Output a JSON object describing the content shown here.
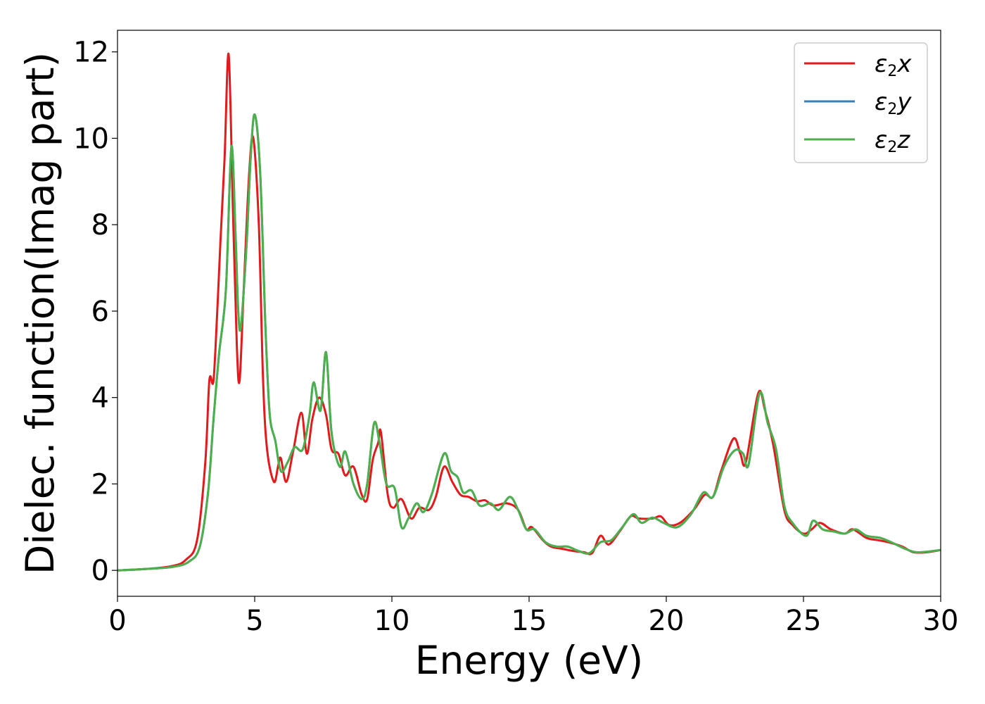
{
  "chart_data": {
    "type": "line",
    "title": "",
    "xlabel": "Energy (eV)",
    "ylabel": "Dielec. function(Imag part)",
    "xlim": [
      0,
      30
    ],
    "ylim": [
      -0.6,
      12.5
    ],
    "xticks": [
      0,
      5,
      10,
      15,
      20,
      25,
      30
    ],
    "yticks": [
      0,
      2,
      4,
      6,
      8,
      10,
      12
    ],
    "grid": false,
    "legend": "top-right",
    "series": [
      {
        "name": "ε₂x",
        "legend_base": "ε",
        "legend_sub": "2",
        "legend_suffix": "x",
        "color": "#e31a1c",
        "points": [
          [
            0,
            0
          ],
          [
            1,
            0.03
          ],
          [
            2,
            0.1
          ],
          [
            2.5,
            0.25
          ],
          [
            2.9,
            0.7
          ],
          [
            3.2,
            2.5
          ],
          [
            3.35,
            4.4
          ],
          [
            3.5,
            4.4
          ],
          [
            3.65,
            6.2
          ],
          [
            3.75,
            7.6
          ],
          [
            3.9,
            9.5
          ],
          [
            4.05,
            11.95
          ],
          [
            4.2,
            8.5
          ],
          [
            4.35,
            5.2
          ],
          [
            4.45,
            4.4
          ],
          [
            4.6,
            6.5
          ],
          [
            4.8,
            9.2
          ],
          [
            4.95,
            10.0
          ],
          [
            5.15,
            8.0
          ],
          [
            5.3,
            4.5
          ],
          [
            5.45,
            2.8
          ],
          [
            5.7,
            2.05
          ],
          [
            5.85,
            2.4
          ],
          [
            5.95,
            2.6
          ],
          [
            6.15,
            2.05
          ],
          [
            6.4,
            2.75
          ],
          [
            6.7,
            3.65
          ],
          [
            6.9,
            2.7
          ],
          [
            7.1,
            3.5
          ],
          [
            7.35,
            4.0
          ],
          [
            7.6,
            3.6
          ],
          [
            7.8,
            2.8
          ],
          [
            8.05,
            2.7
          ],
          [
            8.3,
            2.2
          ],
          [
            8.6,
            2.4
          ],
          [
            8.9,
            1.75
          ],
          [
            9.1,
            1.65
          ],
          [
            9.3,
            2.55
          ],
          [
            9.5,
            2.95
          ],
          [
            9.6,
            3.2
          ],
          [
            9.85,
            1.75
          ],
          [
            10.05,
            1.45
          ],
          [
            10.35,
            1.65
          ],
          [
            10.7,
            1.2
          ],
          [
            11.0,
            1.45
          ],
          [
            11.35,
            1.4
          ],
          [
            11.6,
            1.7
          ],
          [
            11.9,
            2.4
          ],
          [
            12.2,
            2.05
          ],
          [
            12.5,
            1.75
          ],
          [
            12.8,
            1.7
          ],
          [
            13.1,
            1.6
          ],
          [
            13.4,
            1.62
          ],
          [
            13.7,
            1.5
          ],
          [
            14.2,
            1.55
          ],
          [
            14.6,
            1.4
          ],
          [
            14.9,
            0.95
          ],
          [
            15.1,
            1.0
          ],
          [
            15.5,
            0.7
          ],
          [
            15.8,
            0.55
          ],
          [
            16.2,
            0.5
          ],
          [
            16.6,
            0.45
          ],
          [
            17.0,
            0.42
          ],
          [
            17.3,
            0.4
          ],
          [
            17.6,
            0.8
          ],
          [
            17.9,
            0.6
          ],
          [
            18.3,
            0.9
          ],
          [
            18.7,
            1.25
          ],
          [
            19.0,
            1.2
          ],
          [
            19.5,
            1.2
          ],
          [
            19.8,
            1.25
          ],
          [
            20.1,
            1.05
          ],
          [
            20.5,
            1.1
          ],
          [
            21.0,
            1.4
          ],
          [
            21.4,
            1.75
          ],
          [
            21.7,
            1.7
          ],
          [
            22.0,
            2.3
          ],
          [
            22.45,
            3.05
          ],
          [
            22.7,
            2.7
          ],
          [
            22.9,
            2.5
          ],
          [
            23.35,
            4.1
          ],
          [
            23.6,
            3.7
          ],
          [
            23.9,
            2.9
          ],
          [
            24.3,
            1.4
          ],
          [
            24.6,
            1.05
          ],
          [
            25.0,
            0.85
          ],
          [
            25.3,
            0.95
          ],
          [
            25.6,
            1.1
          ],
          [
            26.0,
            0.95
          ],
          [
            26.5,
            0.85
          ],
          [
            26.8,
            0.95
          ],
          [
            27.3,
            0.75
          ],
          [
            27.7,
            0.7
          ],
          [
            28.1,
            0.65
          ],
          [
            28.6,
            0.55
          ],
          [
            29.0,
            0.42
          ],
          [
            29.5,
            0.42
          ],
          [
            30,
            0.47
          ]
        ]
      },
      {
        "name": "ε₂y",
        "legend_base": "ε",
        "legend_sub": "2",
        "legend_suffix": "y",
        "color": "#377eb8",
        "points": [
          [
            0,
            0
          ],
          [
            1,
            0.03
          ],
          [
            2,
            0.08
          ],
          [
            2.6,
            0.2
          ],
          [
            3.0,
            0.55
          ],
          [
            3.3,
            1.8
          ],
          [
            3.5,
            3.5
          ],
          [
            3.7,
            5.0
          ],
          [
            3.95,
            6.5
          ],
          [
            4.15,
            9.8
          ],
          [
            4.3,
            7.8
          ],
          [
            4.4,
            6.0
          ],
          [
            4.5,
            5.65
          ],
          [
            4.7,
            7.5
          ],
          [
            4.85,
            9.5
          ],
          [
            5.0,
            10.55
          ],
          [
            5.2,
            9.2
          ],
          [
            5.4,
            5.5
          ],
          [
            5.55,
            3.6
          ],
          [
            5.75,
            3.0
          ],
          [
            5.95,
            2.3
          ],
          [
            6.2,
            2.5
          ],
          [
            6.45,
            2.85
          ],
          [
            6.75,
            2.8
          ],
          [
            7.0,
            3.6
          ],
          [
            7.15,
            4.35
          ],
          [
            7.4,
            3.7
          ],
          [
            7.6,
            5.05
          ],
          [
            7.8,
            3.2
          ],
          [
            8.1,
            2.4
          ],
          [
            8.3,
            2.75
          ],
          [
            8.6,
            2.0
          ],
          [
            8.9,
            1.65
          ],
          [
            9.1,
            2.0
          ],
          [
            9.35,
            3.4
          ],
          [
            9.55,
            2.95
          ],
          [
            9.8,
            2.0
          ],
          [
            10.1,
            1.9
          ],
          [
            10.35,
            1.0
          ],
          [
            10.6,
            1.2
          ],
          [
            10.9,
            1.55
          ],
          [
            11.15,
            1.35
          ],
          [
            11.45,
            1.75
          ],
          [
            11.9,
            2.7
          ],
          [
            12.15,
            2.3
          ],
          [
            12.4,
            2.15
          ],
          [
            12.6,
            1.8
          ],
          [
            12.9,
            1.85
          ],
          [
            13.2,
            1.5
          ],
          [
            13.6,
            1.55
          ],
          [
            13.9,
            1.4
          ],
          [
            14.3,
            1.7
          ],
          [
            14.6,
            1.4
          ],
          [
            14.9,
            0.95
          ],
          [
            15.2,
            0.95
          ],
          [
            15.6,
            0.65
          ],
          [
            16.0,
            0.55
          ],
          [
            16.4,
            0.55
          ],
          [
            16.8,
            0.45
          ],
          [
            17.2,
            0.4
          ],
          [
            17.6,
            0.65
          ],
          [
            18.0,
            0.7
          ],
          [
            18.4,
            1.0
          ],
          [
            18.8,
            1.3
          ],
          [
            19.1,
            1.1
          ],
          [
            19.5,
            1.22
          ],
          [
            19.9,
            1.1
          ],
          [
            20.4,
            1.0
          ],
          [
            20.9,
            1.3
          ],
          [
            21.35,
            1.8
          ],
          [
            21.7,
            1.7
          ],
          [
            22.1,
            2.4
          ],
          [
            22.5,
            2.78
          ],
          [
            22.8,
            2.7
          ],
          [
            23.0,
            2.45
          ],
          [
            23.4,
            4.1
          ],
          [
            23.7,
            3.4
          ],
          [
            24.0,
            2.8
          ],
          [
            24.3,
            1.5
          ],
          [
            24.6,
            1.1
          ],
          [
            25.1,
            0.8
          ],
          [
            25.35,
            1.15
          ],
          [
            25.7,
            0.95
          ],
          [
            26.1,
            0.9
          ],
          [
            26.5,
            0.85
          ],
          [
            26.9,
            0.95
          ],
          [
            27.3,
            0.8
          ],
          [
            27.8,
            0.75
          ],
          [
            28.2,
            0.65
          ],
          [
            28.7,
            0.5
          ],
          [
            29.1,
            0.42
          ],
          [
            29.6,
            0.44
          ],
          [
            30,
            0.47
          ]
        ]
      },
      {
        "name": "ε₂z",
        "legend_base": "ε",
        "legend_sub": "2",
        "legend_suffix": "z",
        "color": "#4daf4a",
        "points": [
          [
            0,
            0
          ],
          [
            1,
            0.03
          ],
          [
            2,
            0.08
          ],
          [
            2.6,
            0.2
          ],
          [
            3.0,
            0.55
          ],
          [
            3.3,
            1.8
          ],
          [
            3.5,
            3.5
          ],
          [
            3.7,
            5.0
          ],
          [
            3.95,
            6.5
          ],
          [
            4.15,
            9.8
          ],
          [
            4.3,
            7.8
          ],
          [
            4.4,
            6.0
          ],
          [
            4.5,
            5.65
          ],
          [
            4.7,
            7.5
          ],
          [
            4.85,
            9.5
          ],
          [
            5.0,
            10.55
          ],
          [
            5.2,
            9.2
          ],
          [
            5.4,
            5.5
          ],
          [
            5.55,
            3.6
          ],
          [
            5.75,
            3.0
          ],
          [
            5.95,
            2.3
          ],
          [
            6.2,
            2.5
          ],
          [
            6.45,
            2.85
          ],
          [
            6.75,
            2.8
          ],
          [
            7.0,
            3.6
          ],
          [
            7.15,
            4.35
          ],
          [
            7.4,
            3.7
          ],
          [
            7.6,
            5.05
          ],
          [
            7.8,
            3.2
          ],
          [
            8.1,
            2.4
          ],
          [
            8.3,
            2.75
          ],
          [
            8.6,
            2.0
          ],
          [
            8.9,
            1.65
          ],
          [
            9.1,
            2.0
          ],
          [
            9.35,
            3.4
          ],
          [
            9.55,
            2.95
          ],
          [
            9.8,
            2.0
          ],
          [
            10.1,
            1.9
          ],
          [
            10.35,
            1.0
          ],
          [
            10.6,
            1.2
          ],
          [
            10.9,
            1.55
          ],
          [
            11.15,
            1.35
          ],
          [
            11.45,
            1.75
          ],
          [
            11.9,
            2.7
          ],
          [
            12.15,
            2.3
          ],
          [
            12.4,
            2.15
          ],
          [
            12.6,
            1.8
          ],
          [
            12.9,
            1.85
          ],
          [
            13.2,
            1.5
          ],
          [
            13.6,
            1.55
          ],
          [
            13.9,
            1.4
          ],
          [
            14.3,
            1.7
          ],
          [
            14.6,
            1.4
          ],
          [
            14.9,
            0.95
          ],
          [
            15.2,
            0.95
          ],
          [
            15.6,
            0.65
          ],
          [
            16.0,
            0.55
          ],
          [
            16.4,
            0.55
          ],
          [
            16.8,
            0.45
          ],
          [
            17.2,
            0.4
          ],
          [
            17.6,
            0.65
          ],
          [
            18.0,
            0.7
          ],
          [
            18.4,
            1.0
          ],
          [
            18.8,
            1.3
          ],
          [
            19.1,
            1.1
          ],
          [
            19.5,
            1.22
          ],
          [
            19.9,
            1.1
          ],
          [
            20.4,
            1.0
          ],
          [
            20.9,
            1.3
          ],
          [
            21.35,
            1.8
          ],
          [
            21.7,
            1.7
          ],
          [
            22.1,
            2.4
          ],
          [
            22.5,
            2.78
          ],
          [
            22.8,
            2.7
          ],
          [
            23.0,
            2.45
          ],
          [
            23.4,
            4.1
          ],
          [
            23.7,
            3.4
          ],
          [
            24.0,
            2.8
          ],
          [
            24.3,
            1.5
          ],
          [
            24.6,
            1.1
          ],
          [
            25.1,
            0.8
          ],
          [
            25.35,
            1.15
          ],
          [
            25.7,
            0.95
          ],
          [
            26.1,
            0.9
          ],
          [
            26.5,
            0.85
          ],
          [
            26.9,
            0.95
          ],
          [
            27.3,
            0.8
          ],
          [
            27.8,
            0.75
          ],
          [
            28.2,
            0.65
          ],
          [
            28.7,
            0.5
          ],
          [
            29.1,
            0.42
          ],
          [
            29.6,
            0.44
          ],
          [
            30,
            0.47
          ]
        ]
      }
    ]
  }
}
